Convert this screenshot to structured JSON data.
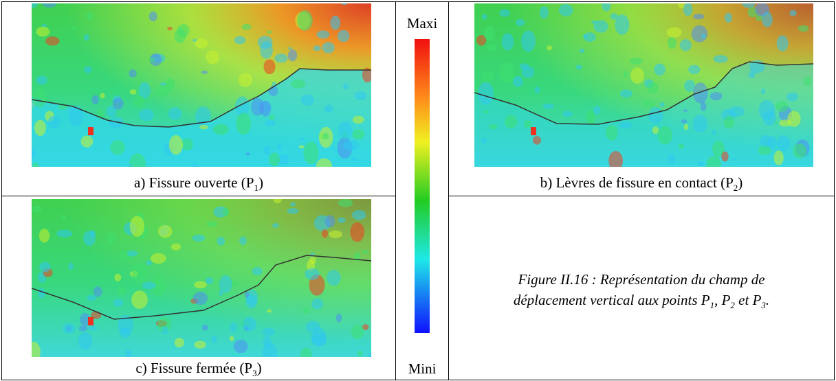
{
  "panels": [
    {
      "caption": [
        "a) Fissure ouverte (P",
        "1",
        ")"
      ]
    },
    {
      "caption": [
        "b) Lèvres de fissure en contact (P",
        "2",
        ")"
      ]
    },
    {
      "caption": [
        "c) Fissure fermée (P",
        "3",
        ")"
      ]
    }
  ],
  "colorbar": {
    "max_label": "Maxi",
    "min_label": "Mini"
  },
  "figure_caption": [
    "Figure II.16 : Représentation du champ de",
    "déplacement vertical aux points P",
    "1",
    ", P",
    "2",
    " et P",
    "3",
    "."
  ]
}
